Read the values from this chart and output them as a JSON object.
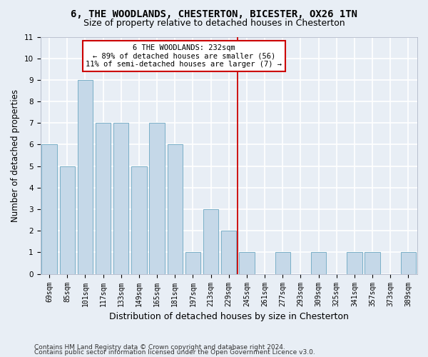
{
  "title1": "6, THE WOODLANDS, CHESTERTON, BICESTER, OX26 1TN",
  "title2": "Size of property relative to detached houses in Chesterton",
  "xlabel": "Distribution of detached houses by size in Chesterton",
  "ylabel": "Number of detached properties",
  "categories": [
    "69sqm",
    "85sqm",
    "101sqm",
    "117sqm",
    "133sqm",
    "149sqm",
    "165sqm",
    "181sqm",
    "197sqm",
    "213sqm",
    "229sqm",
    "245sqm",
    "261sqm",
    "277sqm",
    "293sqm",
    "309sqm",
    "325sqm",
    "341sqm",
    "357sqm",
    "373sqm",
    "389sqm"
  ],
  "values": [
    6,
    5,
    9,
    7,
    7,
    5,
    7,
    6,
    1,
    3,
    2,
    1,
    0,
    1,
    0,
    1,
    0,
    1,
    1,
    0,
    1
  ],
  "bar_color": "#c5d8e8",
  "bar_edgecolor": "#7aafc7",
  "background_color": "#e8eef5",
  "gridcolor": "#ffffff",
  "vline_x": 10.5,
  "vline_color": "#cc0000",
  "annotation_title": "6 THE WOODLANDS: 232sqm",
  "annotation_line1": "← 89% of detached houses are smaller (56)",
  "annotation_line2": "11% of semi-detached houses are larger (7) →",
  "annotation_box_color": "#ffffff",
  "annotation_box_edgecolor": "#cc0000",
  "ylim": [
    0,
    11
  ],
  "yticks": [
    0,
    1,
    2,
    3,
    4,
    5,
    6,
    7,
    8,
    9,
    10,
    11
  ],
  "footnote1": "Contains HM Land Registry data © Crown copyright and database right 2024.",
  "footnote2": "Contains public sector information licensed under the Open Government Licence v3.0.",
  "title1_fontsize": 10,
  "title2_fontsize": 9,
  "tick_fontsize": 7,
  "ylabel_fontsize": 8.5,
  "xlabel_fontsize": 9,
  "footnote_fontsize": 6.5
}
